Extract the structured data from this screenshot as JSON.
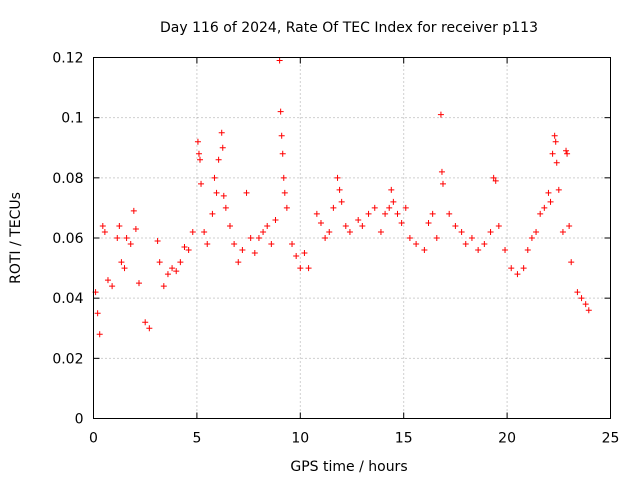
{
  "chart_data": {
    "type": "scatter",
    "title": "Day 116 of 2024, Rate Of TEC Index for receiver p113",
    "xlabel": "GPS time / hours",
    "ylabel": "ROTI / TECUs",
    "xlim": [
      0,
      25
    ],
    "ylim": [
      0,
      0.12
    ],
    "xticks": [
      "0",
      "5",
      "10",
      "15",
      "20",
      "25"
    ],
    "yticks": [
      "0",
      "0.02",
      "0.04",
      "0.06",
      "0.08",
      "0.1",
      "0.12"
    ],
    "xtick_values": [
      0,
      5,
      10,
      15,
      20,
      25
    ],
    "ytick_values": [
      0,
      0.02,
      0.04,
      0.06,
      0.08,
      0.1,
      0.12
    ],
    "grid": true,
    "marker": "+",
    "marker_color": "#ff0000",
    "series": [
      {
        "points": [
          [
            0.1,
            0.042
          ],
          [
            0.2,
            0.035
          ],
          [
            0.3,
            0.028
          ],
          [
            0.45,
            0.064
          ],
          [
            0.55,
            0.062
          ],
          [
            0.7,
            0.046
          ],
          [
            0.9,
            0.044
          ],
          [
            1.15,
            0.06
          ],
          [
            1.25,
            0.064
          ],
          [
            1.35,
            0.052
          ],
          [
            1.5,
            0.05
          ],
          [
            1.6,
            0.06
          ],
          [
            1.8,
            0.058
          ],
          [
            1.95,
            0.069
          ],
          [
            2.05,
            0.063
          ],
          [
            2.2,
            0.045
          ],
          [
            2.5,
            0.032
          ],
          [
            2.7,
            0.03
          ],
          [
            3.1,
            0.059
          ],
          [
            3.2,
            0.052
          ],
          [
            3.4,
            0.044
          ],
          [
            3.6,
            0.048
          ],
          [
            3.8,
            0.05
          ],
          [
            4.0,
            0.049
          ],
          [
            4.2,
            0.052
          ],
          [
            4.4,
            0.057
          ],
          [
            4.6,
            0.056
          ],
          [
            4.8,
            0.062
          ],
          [
            5.05,
            0.092
          ],
          [
            5.1,
            0.088
          ],
          [
            5.15,
            0.086
          ],
          [
            5.2,
            0.078
          ],
          [
            5.35,
            0.062
          ],
          [
            5.5,
            0.058
          ],
          [
            5.75,
            0.068
          ],
          [
            5.85,
            0.08
          ],
          [
            5.95,
            0.075
          ],
          [
            6.05,
            0.086
          ],
          [
            6.2,
            0.095
          ],
          [
            6.25,
            0.09
          ],
          [
            6.3,
            0.074
          ],
          [
            6.4,
            0.07
          ],
          [
            6.6,
            0.064
          ],
          [
            6.8,
            0.058
          ],
          [
            7.0,
            0.052
          ],
          [
            7.2,
            0.056
          ],
          [
            7.4,
            0.075
          ],
          [
            7.6,
            0.06
          ],
          [
            7.8,
            0.055
          ],
          [
            8.0,
            0.06
          ],
          [
            8.2,
            0.062
          ],
          [
            8.4,
            0.064
          ],
          [
            8.6,
            0.058
          ],
          [
            8.8,
            0.066
          ],
          [
            9.0,
            0.119
          ],
          [
            9.05,
            0.102
          ],
          [
            9.1,
            0.094
          ],
          [
            9.15,
            0.088
          ],
          [
            9.2,
            0.08
          ],
          [
            9.25,
            0.075
          ],
          [
            9.35,
            0.07
          ],
          [
            9.6,
            0.058
          ],
          [
            9.8,
            0.054
          ],
          [
            10.0,
            0.05
          ],
          [
            10.2,
            0.055
          ],
          [
            10.4,
            0.05
          ],
          [
            10.8,
            0.068
          ],
          [
            11.0,
            0.065
          ],
          [
            11.2,
            0.06
          ],
          [
            11.4,
            0.062
          ],
          [
            11.6,
            0.07
          ],
          [
            11.8,
            0.08
          ],
          [
            11.9,
            0.076
          ],
          [
            12.0,
            0.072
          ],
          [
            12.2,
            0.064
          ],
          [
            12.4,
            0.062
          ],
          [
            12.8,
            0.066
          ],
          [
            13.0,
            0.064
          ],
          [
            13.3,
            0.068
          ],
          [
            13.6,
            0.07
          ],
          [
            13.9,
            0.062
          ],
          [
            14.1,
            0.068
          ],
          [
            14.3,
            0.07
          ],
          [
            14.4,
            0.076
          ],
          [
            14.5,
            0.072
          ],
          [
            14.7,
            0.068
          ],
          [
            14.9,
            0.065
          ],
          [
            15.1,
            0.07
          ],
          [
            15.3,
            0.06
          ],
          [
            15.6,
            0.058
          ],
          [
            16.0,
            0.056
          ],
          [
            16.2,
            0.065
          ],
          [
            16.4,
            0.068
          ],
          [
            16.6,
            0.06
          ],
          [
            16.8,
            0.101
          ],
          [
            16.85,
            0.082
          ],
          [
            16.9,
            0.078
          ],
          [
            17.2,
            0.068
          ],
          [
            17.5,
            0.064
          ],
          [
            17.8,
            0.062
          ],
          [
            18.0,
            0.058
          ],
          [
            18.3,
            0.06
          ],
          [
            18.6,
            0.056
          ],
          [
            18.9,
            0.058
          ],
          [
            19.2,
            0.062
          ],
          [
            19.35,
            0.08
          ],
          [
            19.45,
            0.079
          ],
          [
            19.6,
            0.064
          ],
          [
            19.9,
            0.056
          ],
          [
            20.2,
            0.05
          ],
          [
            20.5,
            0.048
          ],
          [
            20.8,
            0.05
          ],
          [
            21.0,
            0.056
          ],
          [
            21.2,
            0.06
          ],
          [
            21.4,
            0.062
          ],
          [
            21.6,
            0.068
          ],
          [
            21.8,
            0.07
          ],
          [
            22.0,
            0.075
          ],
          [
            22.1,
            0.072
          ],
          [
            22.2,
            0.088
          ],
          [
            22.3,
            0.094
          ],
          [
            22.35,
            0.092
          ],
          [
            22.4,
            0.085
          ],
          [
            22.5,
            0.076
          ],
          [
            22.7,
            0.062
          ],
          [
            22.85,
            0.089
          ],
          [
            22.9,
            0.088
          ],
          [
            23.0,
            0.064
          ],
          [
            23.1,
            0.052
          ],
          [
            23.4,
            0.042
          ],
          [
            23.6,
            0.04
          ],
          [
            23.8,
            0.038
          ],
          [
            23.95,
            0.036
          ]
        ]
      }
    ]
  }
}
